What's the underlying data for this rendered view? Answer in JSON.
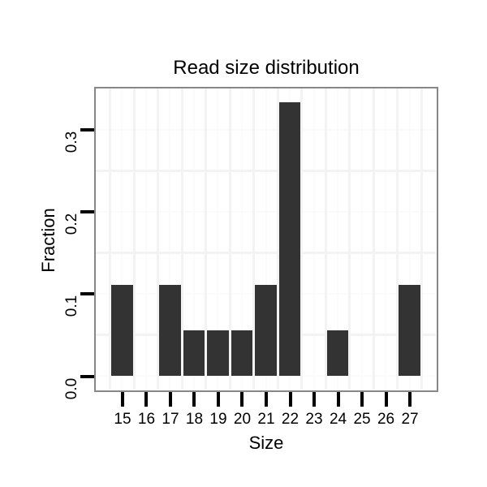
{
  "page": {
    "background": "#ffffff"
  },
  "labels": {
    "title": "Read size distribution",
    "xlabel": "Size",
    "ylabel": "Fraction"
  },
  "chart_data": {
    "type": "bar",
    "title": "Read size distribution",
    "xlabel": "Size",
    "ylabel": "Fraction",
    "categories": [
      15,
      16,
      17,
      18,
      19,
      20,
      21,
      22,
      23,
      24,
      25,
      26,
      27
    ],
    "values": [
      0.1111,
      0,
      0.1111,
      0.0556,
      0.0556,
      0.0556,
      0.1111,
      0.3333,
      0,
      0.0556,
      0,
      0,
      0.1111
    ],
    "x_tick_labels": [
      "15",
      "16",
      "17",
      "18",
      "19",
      "20",
      "21",
      "22",
      "23",
      "24",
      "25",
      "26",
      "27"
    ],
    "y_ticks": [
      0,
      0.1,
      0.2,
      0.3
    ],
    "y_tick_labels": [
      "0.0",
      "0.1",
      "0.2",
      "0.3"
    ],
    "xlim": [
      13.9,
      28.1
    ],
    "ylim": [
      -0.0167,
      0.35
    ],
    "bar_width_fraction": 0.9,
    "x_minor_gridlines": [
      14.5,
      15.5,
      16.5,
      17.5,
      18.5,
      19.5,
      20.5,
      21.5,
      22.5,
      23.5,
      24.5,
      25.5,
      26.5,
      27.5
    ],
    "y_minor_gridlines": [
      0.05,
      0.15,
      0.25
    ],
    "grid": "minor-gray-major-white",
    "legend": "none"
  },
  "colors": {
    "bar": "#333333",
    "panel_border": "#878787",
    "axis_tick": "#000000",
    "grid_minor": "#f3f3f3",
    "grid_major": "#fbfbfb",
    "text": "#000000",
    "background": "#ffffff"
  }
}
